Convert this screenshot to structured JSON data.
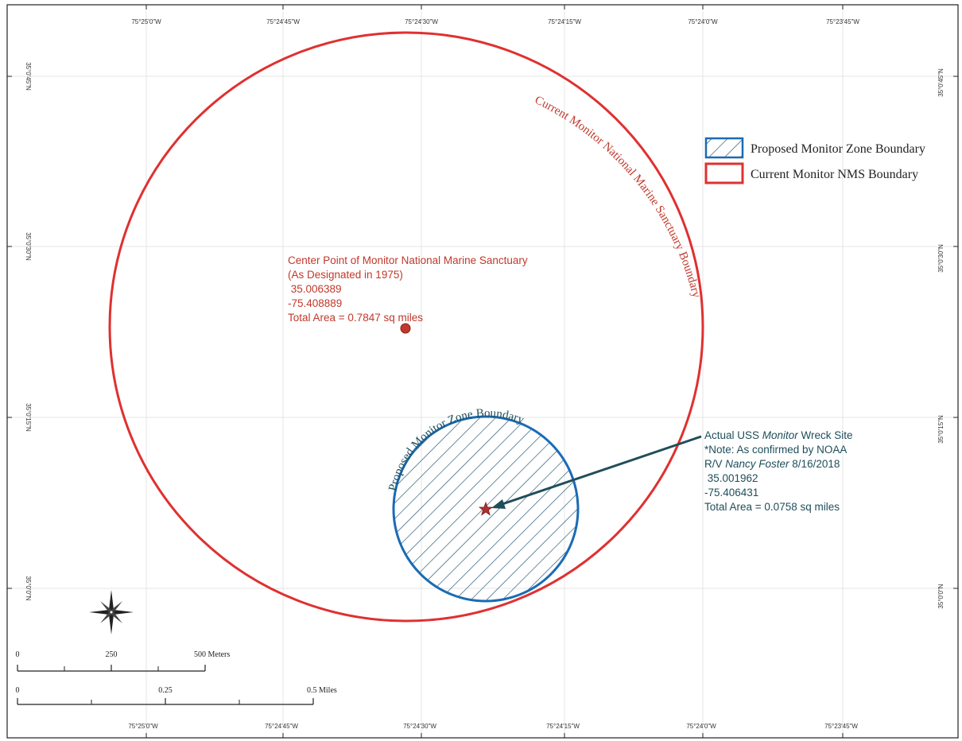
{
  "map": {
    "lon_ticks_top": [
      "75°25'0\"W",
      "75°24'45\"W",
      "75°24'30\"W",
      "75°24'15\"W",
      "75°24'0\"W",
      "75°23'45\"W"
    ],
    "lon_ticks_bottom": [
      "75°25'0\"W",
      "75°24'45\"W",
      "75°24'30\"W",
      "75°24'15\"W",
      "75°24'0\"W",
      "75°23'45\"W"
    ],
    "lat_ticks_left": [
      "35°0'45\"N",
      "35°0'30\"N",
      "35°0'15\"N",
      "35°0'0\"N"
    ],
    "lat_ticks_right": [
      "35°0'45\"N",
      "35°0'30\"N",
      "35°0'15\"N",
      "35°0'0\"N"
    ],
    "legend": {
      "items": [
        {
          "label": "Proposed Monitor Zone Boundary",
          "color": "#1a6bb5",
          "style": "hatched"
        },
        {
          "label": "Current Monitor NMS Boundary",
          "color": "#e03030",
          "style": "outline"
        }
      ]
    },
    "sanctuary": {
      "arc_label": "Current Monitor National Marine Sanctuary Boundary",
      "color": "#e03030",
      "center_lines": [
        "Center Point of Monitor National Marine Sanctuary",
        "(As Designated in 1975)",
        " 35.006389",
        "-75.408889",
        "Total Area = 0.7847 sq miles"
      ]
    },
    "zone": {
      "arc_label": "Proposed Monitor Zone Boundary",
      "color": "#1a6bb5"
    },
    "wreck": {
      "line1_prefix": "Actual USS ",
      "line1_italic": "Monitor",
      "line1_suffix": " Wreck Site",
      "line2": "*Note: As confirmed by NOAA",
      "line3_prefix": "R/V ",
      "line3_italic": "Nancy Foster",
      "line3_suffix": " 8/16/2018",
      "line4": " 35.001962",
      "line5": "-75.406431",
      "line6": "Total Area = 0.0758 sq miles"
    },
    "scale_meters": {
      "labels": [
        "0",
        "250",
        "500 Meters"
      ]
    },
    "scale_miles": {
      "labels": [
        "0",
        "0.25",
        "0.5 Miles"
      ]
    }
  }
}
